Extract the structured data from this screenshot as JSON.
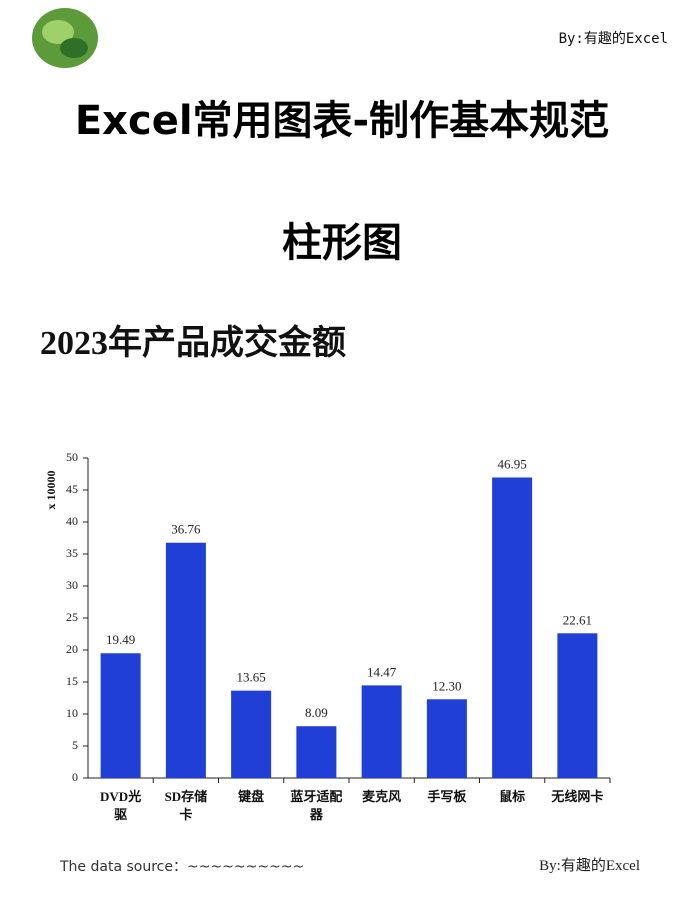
{
  "header": {
    "byline": "By:有趣的Excel",
    "title": "Excel常用图表-制作基本规范",
    "subtitle": "柱形图"
  },
  "chart_data": {
    "type": "bar",
    "title": "2023年产品成交金额",
    "y_label": "x 10000",
    "categories": [
      "DVD光驱",
      "SD存储卡",
      "键盘",
      "蓝牙适配器",
      "麦克风",
      "手写板",
      "鼠标",
      "无线网卡"
    ],
    "values": [
      19.49,
      36.76,
      13.65,
      8.09,
      14.47,
      12.3,
      46.95,
      22.61
    ],
    "value_labels": [
      "19.49",
      "36.76",
      "13.65",
      "8.09",
      "14.47",
      "12.30",
      "46.95",
      "22.61"
    ],
    "color": "#1f3fd6",
    "ylim": [
      0,
      50
    ],
    "yticks": [
      0,
      5,
      10,
      15,
      20,
      25,
      30,
      35,
      40,
      45,
      50
    ],
    "grid": false
  },
  "footer": {
    "source": "The data source：~~~~~~~~~~",
    "byline": "By:有趣的Excel"
  }
}
